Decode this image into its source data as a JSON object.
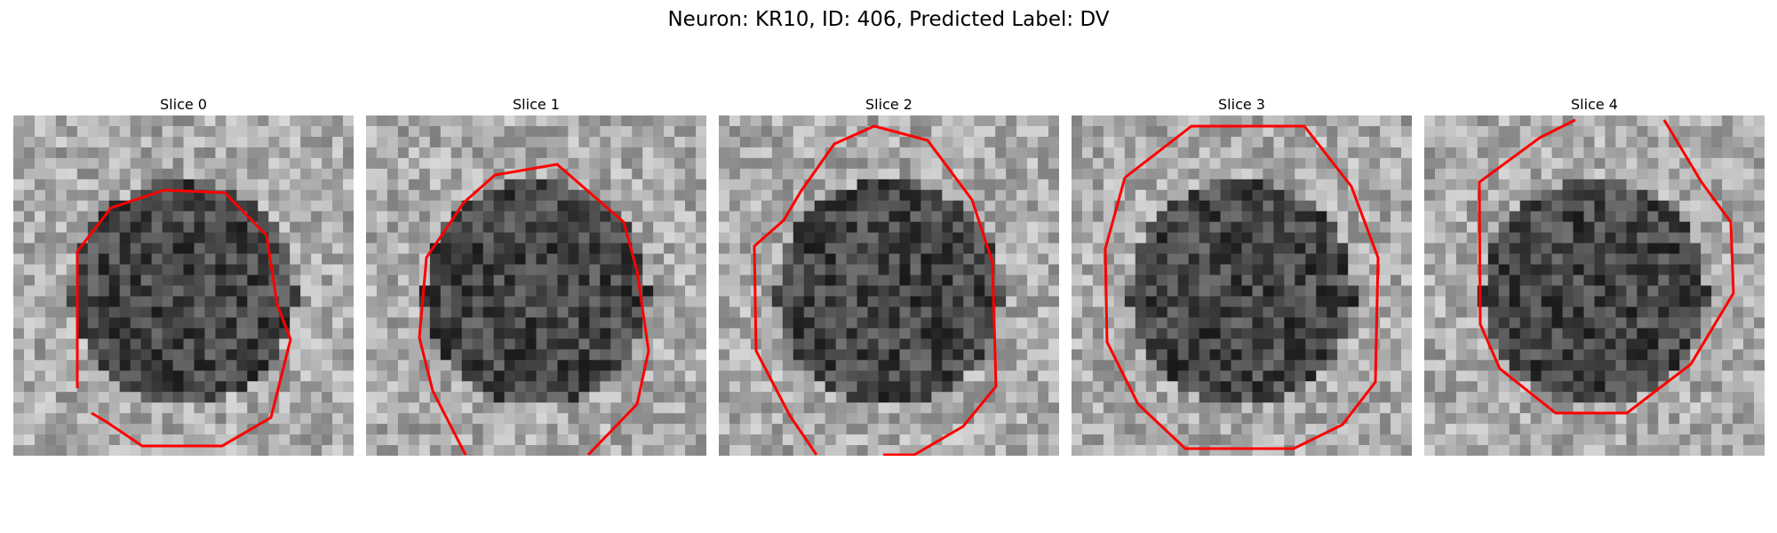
{
  "figure": {
    "title": "Neuron: KR10, ID: 406, Predicted Label: DV"
  },
  "panels": [
    {
      "title": "Slice 0"
    },
    {
      "title": "Slice 1"
    },
    {
      "title": "Slice 2"
    },
    {
      "title": "Slice 3"
    },
    {
      "title": "Slice 4"
    }
  ],
  "colors": {
    "contour": "#ff0000"
  },
  "image_description_note": "Grayscale microscopy crops; roughly round dark neuron body centered in each slice, outlined by a red contour."
}
